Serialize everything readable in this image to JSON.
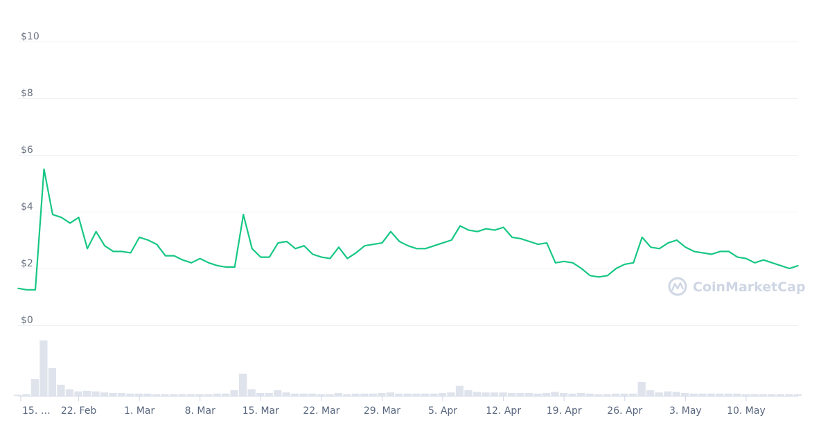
{
  "chart_data": {
    "type": "line",
    "y_ticks": [
      "$0",
      "$2",
      "$4",
      "$6",
      "$8",
      "$10"
    ],
    "ylim": [
      0,
      10
    ],
    "x_ticks": [
      "15. …",
      "22. Feb",
      "1. Mar",
      "8. Mar",
      "15. Mar",
      "22. Mar",
      "29. Mar",
      "5. Apr",
      "12. Apr",
      "19. Apr",
      "26. Apr",
      "3. May",
      "10. May"
    ],
    "grid": true,
    "colors": {
      "price_line": "#16c784",
      "volume_fill": "#dfe3ec",
      "grid": "#eff2f5"
    },
    "series": [
      {
        "values_x": [
          "15 Feb",
          "16 Feb",
          "17 Feb",
          "18 Feb",
          "19 Feb",
          "20 Feb",
          "21 Feb",
          "22 Feb",
          "23 Feb",
          "24 Feb",
          "25 Feb",
          "26 Feb",
          "27 Feb",
          "28 Feb",
          "1 Mar",
          "2 Mar",
          "3 Mar",
          "4 Mar",
          "5 Mar",
          "6 Mar",
          "7 Mar",
          "8 Mar",
          "9 Mar",
          "10 Mar",
          "11 Mar",
          "12 Mar",
          "13 Mar",
          "14 Mar",
          "15 Mar",
          "16 Mar",
          "17 Mar",
          "18 Mar",
          "19 Mar",
          "20 Mar",
          "21 Mar",
          "22 Mar",
          "23 Mar",
          "24 Mar",
          "25 Mar",
          "26 Mar",
          "27 Mar",
          "28 Mar",
          "29 Mar",
          "30 Mar",
          "31 Mar",
          "1 Apr",
          "2 Apr",
          "3 Apr",
          "4 Apr",
          "5 Apr",
          "6 Apr",
          "7 Apr",
          "8 Apr",
          "9 Apr",
          "10 Apr",
          "11 Apr",
          "12 Apr",
          "13 Apr",
          "14 Apr",
          "15 Apr",
          "16 Apr",
          "17 Apr",
          "18 Apr",
          "19 Apr",
          "20 Apr",
          "21 Apr",
          "22 Apr",
          "23 Apr",
          "24 Apr",
          "25 Apr",
          "26 Apr",
          "27 Apr",
          "28 Apr",
          "29 Apr",
          "30 Apr",
          "1 May",
          "2 May",
          "3 May",
          "4 May",
          "5 May",
          "6 May",
          "7 May",
          "8 May",
          "9 May",
          "10 May",
          "11 May",
          "12 May",
          "13 May",
          "14 May",
          "15 May",
          "16 May"
        ],
        "values": [
          1.3,
          1.25,
          1.25,
          5.5,
          3.9,
          3.8,
          3.6,
          3.8,
          2.7,
          3.3,
          2.8,
          2.6,
          2.6,
          2.55,
          3.1,
          3.0,
          2.85,
          2.45,
          2.45,
          2.3,
          2.2,
          2.35,
          2.2,
          2.1,
          2.05,
          2.05,
          3.9,
          2.7,
          2.4,
          2.4,
          2.9,
          2.95,
          2.7,
          2.8,
          2.5,
          2.4,
          2.35,
          2.75,
          2.35,
          2.55,
          2.8,
          2.85,
          2.9,
          3.3,
          2.95,
          2.8,
          2.7,
          2.7,
          2.8,
          2.9,
          3.0,
          3.5,
          3.35,
          3.3,
          3.4,
          3.35,
          3.45,
          3.1,
          3.05,
          2.95,
          2.85,
          2.9,
          2.2,
          2.25,
          2.2,
          2.0,
          1.75,
          1.7,
          1.75,
          2.0,
          2.15,
          2.2,
          3.1,
          2.75,
          2.7,
          2.9,
          3.0,
          2.75,
          2.6,
          2.55,
          2.5,
          2.6,
          2.6,
          2.4,
          2.35,
          2.2,
          2.3,
          2.2,
          2.1,
          2.0,
          2.1
        ]
      },
      {
        "volume_values": [
          0.02,
          0.03,
          0.3,
          1.0,
          0.5,
          0.2,
          0.12,
          0.08,
          0.09,
          0.08,
          0.06,
          0.05,
          0.05,
          0.04,
          0.04,
          0.04,
          0.03,
          0.03,
          0.03,
          0.03,
          0.03,
          0.03,
          0.03,
          0.04,
          0.04,
          0.1,
          0.4,
          0.12,
          0.05,
          0.05,
          0.1,
          0.06,
          0.04,
          0.04,
          0.04,
          0.03,
          0.03,
          0.05,
          0.03,
          0.04,
          0.04,
          0.04,
          0.05,
          0.06,
          0.04,
          0.04,
          0.04,
          0.04,
          0.04,
          0.05,
          0.06,
          0.18,
          0.1,
          0.07,
          0.06,
          0.06,
          0.06,
          0.05,
          0.05,
          0.05,
          0.04,
          0.05,
          0.07,
          0.05,
          0.04,
          0.05,
          0.04,
          0.03,
          0.03,
          0.04,
          0.04,
          0.04,
          0.25,
          0.1,
          0.06,
          0.08,
          0.07,
          0.05,
          0.04,
          0.04,
          0.04,
          0.04,
          0.04,
          0.04,
          0.03,
          0.03,
          0.03,
          0.03,
          0.03,
          0.03,
          0.03
        ]
      }
    ]
  },
  "watermark": {
    "text": "CoinMarketCap",
    "icon": "coinmarketcap-logo-icon"
  }
}
